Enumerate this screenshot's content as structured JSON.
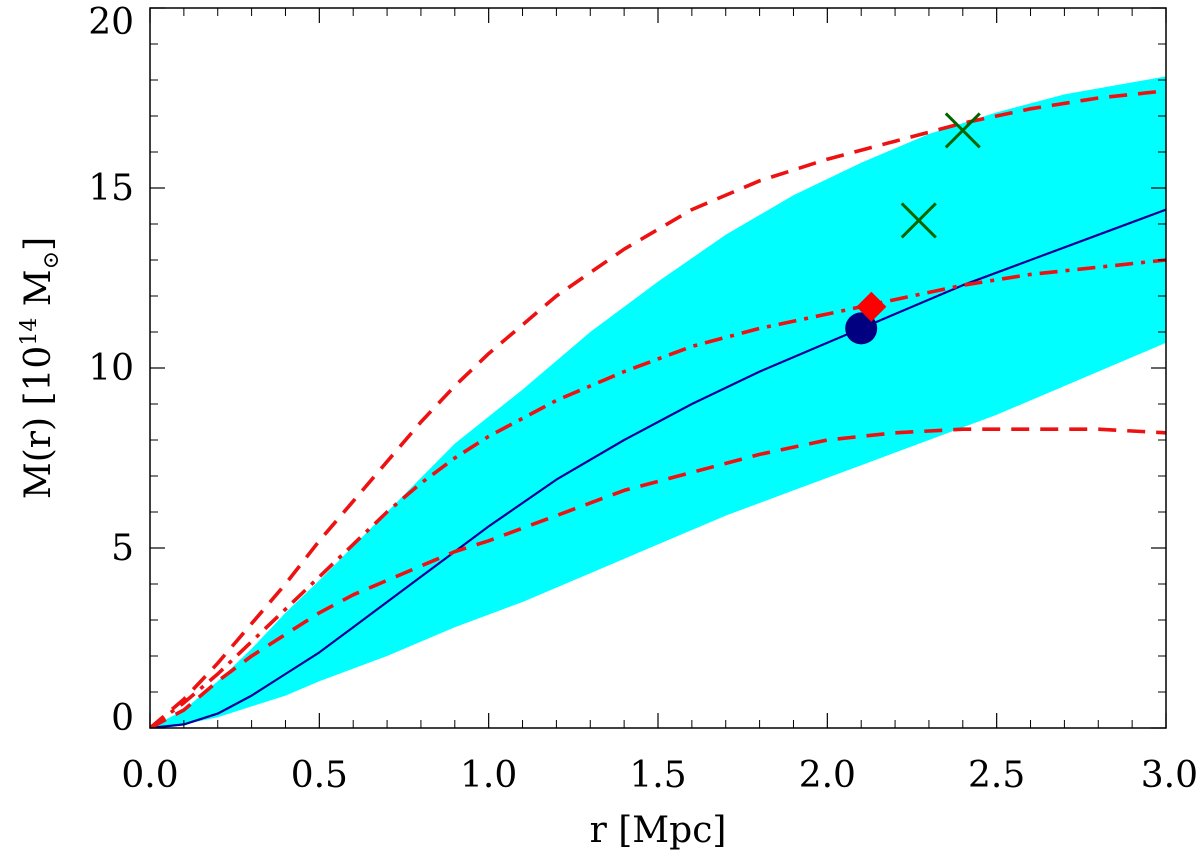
{
  "chart_data": {
    "type": "line",
    "title": "",
    "xlabel": "r [Mpc]",
    "ylabel": {
      "pre": "M(r) [10",
      "exp": "14",
      "mid": " M",
      "sub": "⊙",
      "post": "]"
    },
    "xlim": [
      0,
      3
    ],
    "ylim": [
      0,
      20
    ],
    "x_ticks": [
      {
        "value": 0.0,
        "label": "0.0"
      },
      {
        "value": 0.5,
        "label": "0.5"
      },
      {
        "value": 1.0,
        "label": "1.0"
      },
      {
        "value": 1.5,
        "label": "1.5"
      },
      {
        "value": 2.0,
        "label": "2.0"
      },
      {
        "value": 2.5,
        "label": "2.5"
      },
      {
        "value": 3.0,
        "label": "3.0"
      }
    ],
    "y_ticks": [
      {
        "value": 0,
        "label": "0"
      },
      {
        "value": 5,
        "label": "5"
      },
      {
        "value": 10,
        "label": "10"
      },
      {
        "value": 15,
        "label": "15"
      },
      {
        "value": 20,
        "label": "20"
      }
    ],
    "x_minor_step": 0.1,
    "y_minor_step": 1,
    "grid": false,
    "legend": "none",
    "band": {
      "color": "#00ffff",
      "x": [
        0,
        0.1,
        0.2,
        0.3,
        0.4,
        0.5,
        0.7,
        0.9,
        1.1,
        1.3,
        1.5,
        1.7,
        1.9,
        2.1,
        2.3,
        2.5,
        2.7,
        3.0
      ],
      "lower": [
        0,
        0.1,
        0.3,
        0.6,
        0.9,
        1.3,
        2.0,
        2.8,
        3.5,
        4.3,
        5.1,
        5.9,
        6.6,
        7.3,
        8.0,
        8.7,
        9.5,
        10.7
      ],
      "upper": [
        0,
        0.5,
        1.3,
        2.2,
        3.2,
        4.1,
        6.0,
        7.9,
        9.4,
        11.0,
        12.4,
        13.7,
        14.8,
        15.7,
        16.5,
        17.1,
        17.6,
        18.1
      ]
    },
    "series": [
      {
        "color": "#000099",
        "dash": "solid",
        "x": [
          0,
          0.1,
          0.2,
          0.3,
          0.4,
          0.5,
          0.6,
          0.7,
          0.8,
          0.9,
          1.0,
          1.2,
          1.4,
          1.6,
          1.8,
          2.0,
          2.2,
          2.4,
          2.6,
          2.8,
          3.0
        ],
        "y": [
          0,
          0.1,
          0.4,
          0.9,
          1.5,
          2.1,
          2.8,
          3.5,
          4.2,
          4.9,
          5.6,
          6.9,
          8.0,
          9.0,
          9.9,
          10.7,
          11.5,
          12.3,
          13.0,
          13.7,
          14.4
        ]
      },
      {
        "color": "#ee1111",
        "dash": "dashed",
        "x": [
          0,
          0.1,
          0.2,
          0.3,
          0.4,
          0.5,
          0.6,
          0.7,
          0.8,
          0.9,
          1.0,
          1.2,
          1.4,
          1.6,
          1.8,
          2.0,
          2.2,
          2.4,
          2.6,
          2.8,
          3.0
        ],
        "y": [
          0,
          0.8,
          1.8,
          2.9,
          4.0,
          5.2,
          6.3,
          7.4,
          8.5,
          9.5,
          10.4,
          12.0,
          13.3,
          14.4,
          15.2,
          15.8,
          16.3,
          16.8,
          17.2,
          17.5,
          17.7
        ]
      },
      {
        "color": "#ee1111",
        "dash": "dashed",
        "x": [
          0,
          0.1,
          0.2,
          0.3,
          0.4,
          0.5,
          0.6,
          0.7,
          0.8,
          0.9,
          1.0,
          1.2,
          1.4,
          1.6,
          1.8,
          2.0,
          2.2,
          2.4,
          2.6,
          2.8,
          3.0
        ],
        "y": [
          0,
          0.5,
          1.3,
          2.0,
          2.6,
          3.2,
          3.7,
          4.1,
          4.5,
          4.9,
          5.2,
          5.9,
          6.6,
          7.1,
          7.6,
          8.0,
          8.2,
          8.3,
          8.3,
          8.3,
          8.2
        ]
      },
      {
        "color": "#ee1111",
        "dash": "dashdot",
        "x": [
          0,
          0.1,
          0.2,
          0.3,
          0.4,
          0.5,
          0.6,
          0.7,
          0.8,
          0.9,
          1.0,
          1.2,
          1.4,
          1.6,
          1.8,
          2.0,
          2.2,
          2.4,
          2.6,
          2.8,
          3.0
        ],
        "y": [
          0,
          0.7,
          1.5,
          2.4,
          3.3,
          4.2,
          5.1,
          6.0,
          6.8,
          7.5,
          8.1,
          9.1,
          9.9,
          10.6,
          11.1,
          11.5,
          11.9,
          12.3,
          12.6,
          12.8,
          13.0
        ]
      }
    ],
    "markers": [
      {
        "shape": "circle",
        "color": "#000080",
        "x": 2.1,
        "y": 11.1
      },
      {
        "shape": "diamond",
        "color": "#ff0000",
        "x": 2.13,
        "y": 11.7
      },
      {
        "shape": "x",
        "color": "#006400",
        "x": 2.27,
        "y": 14.1
      },
      {
        "shape": "x",
        "color": "#006400",
        "x": 2.4,
        "y": 16.6
      }
    ]
  }
}
